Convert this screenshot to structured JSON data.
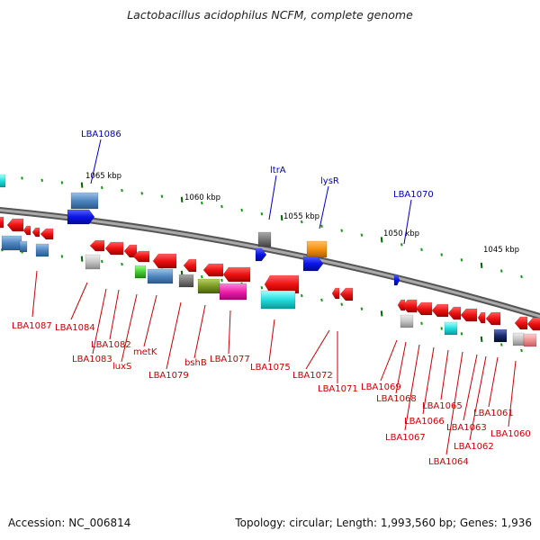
{
  "title": "Lactobacillus acidophilus NCFM, complete genome",
  "footer": {
    "accession": "Accession: NC_006814",
    "stats": "Topology: circular; Length: 1,993,560 bp; Genes: 1,936"
  },
  "scale_labels": [
    "1065 kbp",
    "1060 kbp",
    "1055 kbp",
    "1050 kbp",
    "1045 kbp"
  ],
  "top_gene_labels": [
    "LBA1086",
    "ltrA",
    "lysR",
    "LBA1070"
  ],
  "bottom_gene_labels": [
    "LBA1087",
    "LBA1084",
    "LBA1083",
    "LBA1082",
    "luxS",
    "metK",
    "LBA1079",
    "bshB",
    "LBA1077",
    "LBA1075",
    "LBA1072",
    "LBA1071",
    "LBA1069",
    "LBA1068",
    "LBA1067",
    "LBA1066",
    "LBA1065",
    "LBA1064",
    "LBA1063",
    "LBA1062",
    "LBA1061",
    "LBA1060"
  ],
  "colors": {
    "red": "#ee1111",
    "blue": "#0a14e8",
    "steel": "#4f86c0",
    "cyan": "#22dddd",
    "gray": "#777777",
    "lightgray": "#c4c4c4",
    "orange": "#f39010",
    "green": "#44cc33",
    "olive": "#7a9a25",
    "magenta": "#ee22aa",
    "label_blue": "#0000bb",
    "label_red": "#cc0000"
  }
}
